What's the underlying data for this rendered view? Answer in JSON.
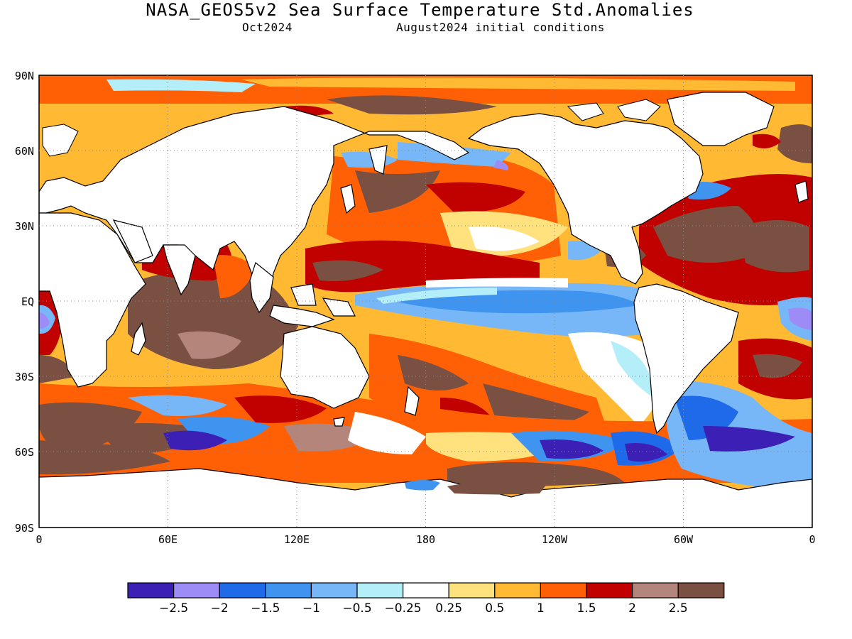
{
  "header": {
    "title": "NASA_GEOS5v2 Sea Surface Temperature Std.Anomalies",
    "valid_month": "Oct2024",
    "init_conditions": "August2024 initial conditions"
  },
  "axes": {
    "lat_labels": [
      "90N",
      "60N",
      "30N",
      "EQ",
      "30S",
      "60S",
      "90S"
    ],
    "lon_labels": [
      "0",
      "60E",
      "120E",
      "180",
      "120W",
      "60W",
      "0"
    ],
    "lat_range": [
      -90,
      90
    ],
    "lon_range": [
      0,
      360
    ],
    "grid": "dotted"
  },
  "colorbar": {
    "colors": [
      "#3c1fb4",
      "#9d8cf5",
      "#1e6ae8",
      "#3f94ef",
      "#78b7f7",
      "#b4eef8",
      "#ffffff",
      "#ffe27d",
      "#ffb933",
      "#ff5f05",
      "#c10000",
      "#b4857b",
      "#7a5043"
    ],
    "tick_labels": [
      "−2.5",
      "−2",
      "−1.5",
      "−1",
      "−0.5",
      "−0.25",
      "0.25",
      "0.5",
      "1",
      "1.5",
      "2",
      "2.5"
    ]
  },
  "colors": {
    "land": "#ffffff",
    "coastline": "#000000"
  }
}
